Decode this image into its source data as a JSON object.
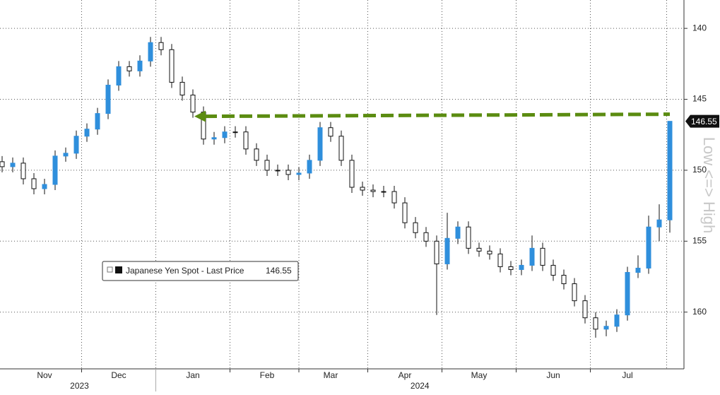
{
  "chart_data": {
    "type": "candlestick",
    "y_axis_label": "Low <=> High",
    "series": [
      {
        "name": "Japanese Yen Spot - Last Price",
        "up_color": "#ffffff",
        "down_color": "#2f8fdc",
        "open": [
          149.4,
          149.75,
          149.5,
          150.6,
          151.3,
          151.0,
          149.0,
          148.8,
          147.6,
          147.1,
          146.0,
          144.0,
          142.7,
          143.0,
          142.3,
          141.0,
          141.5,
          143.8,
          144.7,
          145.9,
          147.8,
          147.7,
          147.3,
          147.3,
          148.5,
          149.3,
          150.0,
          150.0,
          150.3,
          150.2,
          149.3,
          147.0,
          147.6,
          149.3,
          151.2,
          151.4,
          151.5,
          151.5,
          152.3,
          153.7,
          154.4,
          155.0,
          156.6,
          154.8,
          154.0,
          155.5,
          155.7,
          155.9,
          156.8,
          157.0,
          156.7,
          155.5,
          156.7,
          157.4,
          158.0,
          159.2,
          160.4,
          161.2,
          161.0,
          160.2,
          157.2,
          156.9,
          154.0,
          153.5
        ],
        "high": [
          150.15,
          150.15,
          151.0,
          151.7,
          151.7,
          151.4,
          149.4,
          149.2,
          148.0,
          147.5,
          146.4,
          144.4,
          143.4,
          143.4,
          142.7,
          141.9,
          144.2,
          145.1,
          146.3,
          148.2,
          148.2,
          148.1,
          147.7,
          148.9,
          149.7,
          150.4,
          150.4,
          150.7,
          150.7,
          150.6,
          149.7,
          148.0,
          149.7,
          151.6,
          151.8,
          151.9,
          151.9,
          152.7,
          154.1,
          154.8,
          155.4,
          160.2,
          157.0,
          155.2,
          155.9,
          156.1,
          156.3,
          157.2,
          157.4,
          157.4,
          157.1,
          157.1,
          157.8,
          158.4,
          159.6,
          160.8,
          161.8,
          161.7,
          161.4,
          160.6,
          157.6,
          157.3,
          155.0,
          154.4
        ],
        "low": [
          149.0,
          149.1,
          149.1,
          150.2,
          150.6,
          148.6,
          148.4,
          147.2,
          146.7,
          145.6,
          143.6,
          142.3,
          142.3,
          141.9,
          140.6,
          140.6,
          141.1,
          143.4,
          144.3,
          145.5,
          147.3,
          146.9,
          146.9,
          146.9,
          148.1,
          148.9,
          149.6,
          149.6,
          149.8,
          148.9,
          146.6,
          146.6,
          147.2,
          148.9,
          150.8,
          151.0,
          151.1,
          151.1,
          151.9,
          153.3,
          154.0,
          154.6,
          153.0,
          153.6,
          153.6,
          155.1,
          155.3,
          155.5,
          156.4,
          156.3,
          154.6,
          155.1,
          156.3,
          157.0,
          157.6,
          158.8,
          160.0,
          160.6,
          159.8,
          156.8,
          156.0,
          153.2,
          152.4,
          146.55
        ],
        "close": [
          149.75,
          149.5,
          150.6,
          151.3,
          151.0,
          149.0,
          148.8,
          147.6,
          147.1,
          146.0,
          144.0,
          142.7,
          143.0,
          142.3,
          141.0,
          141.5,
          143.8,
          144.7,
          145.9,
          147.8,
          147.7,
          147.3,
          147.3,
          148.5,
          149.3,
          150.0,
          150.0,
          150.3,
          150.2,
          149.3,
          147.0,
          147.6,
          149.3,
          151.2,
          151.4,
          151.5,
          151.5,
          152.3,
          153.7,
          154.4,
          155.0,
          156.6,
          154.8,
          154.0,
          155.5,
          155.7,
          155.9,
          156.8,
          157.0,
          156.7,
          155.5,
          156.7,
          157.4,
          158.0,
          159.2,
          160.4,
          161.2,
          161.0,
          160.2,
          157.2,
          156.9,
          154.0,
          153.5,
          146.55
        ]
      }
    ],
    "last_price": 146.55,
    "categories": [
      null,
      null,
      null,
      null,
      "Nov",
      null,
      null,
      null,
      null,
      null,
      null,
      "Dec",
      null,
      null,
      null,
      null,
      null,
      null,
      "Jan",
      null,
      null,
      null,
      null,
      null,
      null,
      "Feb",
      null,
      null,
      null,
      null,
      null,
      "Mar",
      null,
      null,
      null,
      null,
      null,
      null,
      "Apr",
      null,
      null,
      null,
      null,
      null,
      null,
      "May",
      null,
      null,
      null,
      null,
      null,
      null,
      "Jun",
      null,
      null,
      null,
      null,
      null,
      null,
      "Jul",
      null,
      null,
      null,
      null
    ],
    "years": [
      "2023",
      "2024"
    ],
    "ylim": [
      164,
      138
    ],
    "yticks": [
      140,
      145,
      150,
      155,
      160
    ],
    "grid": true,
    "annotation": {
      "value": 146.2,
      "color": "#5b8c11"
    }
  }
}
